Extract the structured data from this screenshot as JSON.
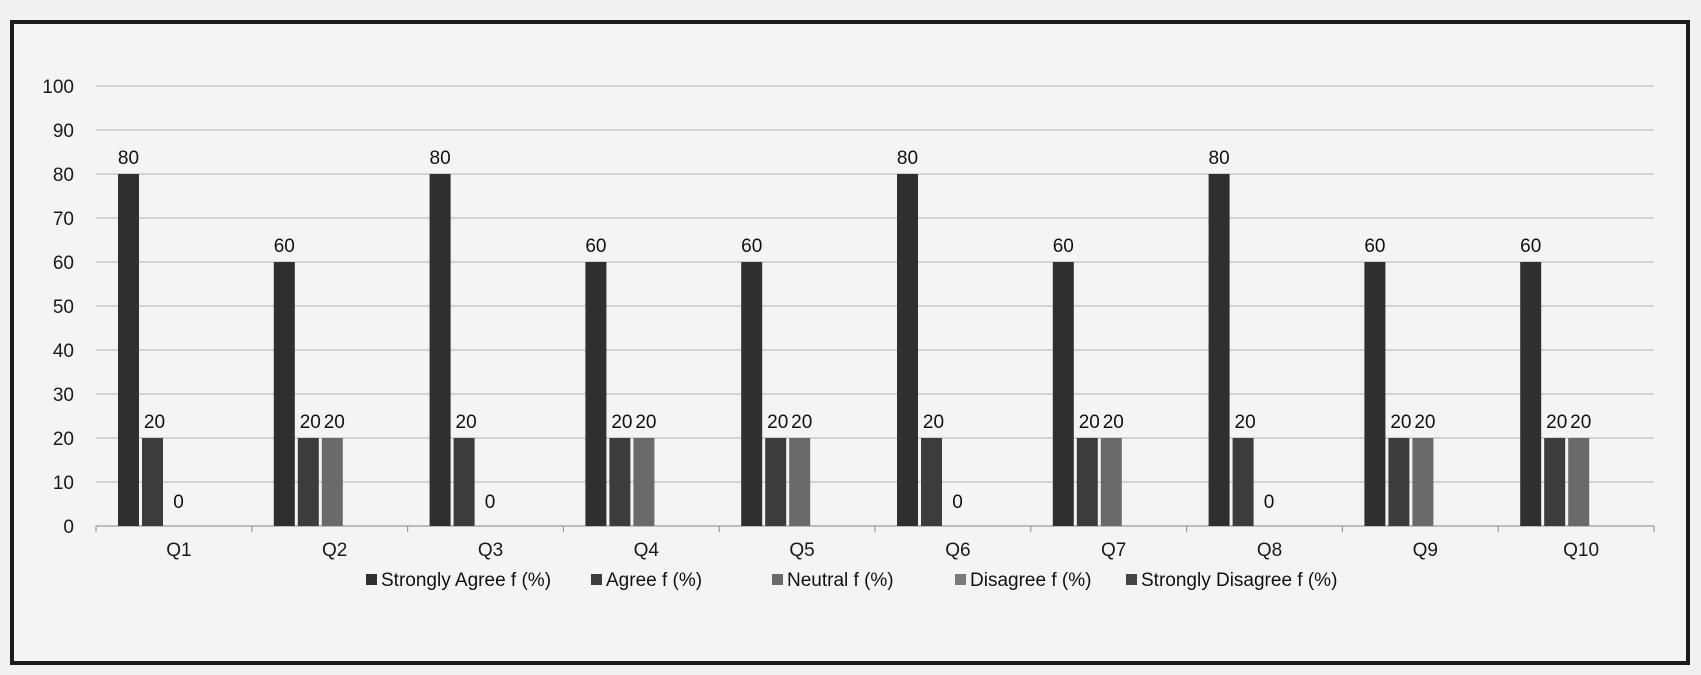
{
  "chart_data": {
    "type": "bar",
    "categories": [
      "Q1",
      "Q2",
      "Q3",
      "Q4",
      "Q5",
      "Q6",
      "Q7",
      "Q8",
      "Q9",
      "Q10"
    ],
    "series": [
      {
        "name": "Strongly Agree f (%)",
        "values": [
          80,
          60,
          80,
          60,
          60,
          80,
          60,
          80,
          60,
          60
        ]
      },
      {
        "name": "Agree f (%)",
        "values": [
          20,
          20,
          20,
          20,
          20,
          20,
          20,
          20,
          20,
          20
        ]
      },
      {
        "name": "Neutral f (%)",
        "values": [
          0,
          20,
          0,
          20,
          20,
          0,
          20,
          0,
          20,
          20
        ]
      },
      {
        "name": "Disagree f (%)",
        "values": [
          null,
          null,
          null,
          null,
          null,
          null,
          null,
          null,
          null,
          null
        ]
      },
      {
        "name": "Strongly Disagree f (%)",
        "values": [
          null,
          null,
          null,
          null,
          null,
          null,
          null,
          null,
          null,
          null
        ]
      }
    ],
    "data_labels": [
      [
        "80",
        "20",
        "0"
      ],
      [
        "60",
        "20",
        "20"
      ],
      [
        "80",
        "20",
        "0"
      ],
      [
        "60",
        "20",
        "20"
      ],
      [
        "60",
        "20",
        "20"
      ],
      [
        "80",
        "20",
        "0"
      ],
      [
        "60",
        "20",
        "20"
      ],
      [
        "80",
        "20",
        "0"
      ],
      [
        "60",
        "20",
        "20"
      ],
      [
        "60",
        "20",
        "20"
      ]
    ],
    "ylim": [
      0,
      100
    ],
    "yticks": [
      "0",
      "10",
      "20",
      "30",
      "40",
      "50",
      "60",
      "70",
      "80",
      "90",
      "100"
    ],
    "grid": true,
    "legend": "bottom",
    "colors": [
      "#2f2f2f",
      "#3c3c3c",
      "#6a6a6a",
      "#7a7a7a",
      "#444444"
    ],
    "title": "",
    "xlabel": "",
    "ylabel": ""
  }
}
